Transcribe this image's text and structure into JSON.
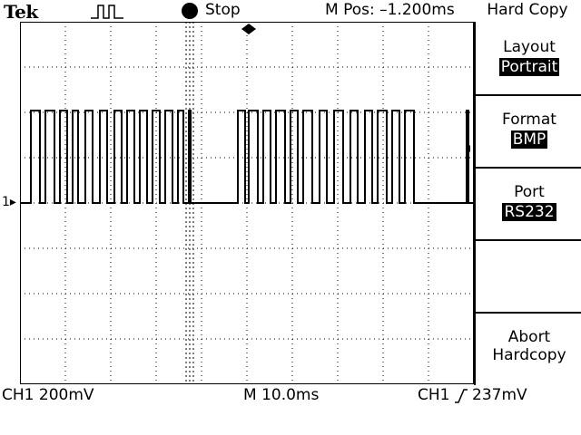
{
  "header": {
    "brand": "Tek",
    "trigger_icon": "pulse-trigger-icon",
    "run_state": "Stop",
    "horizontal_position": "M Pos: –1.200ms",
    "menu_title": "Hard Copy"
  },
  "side_menu": [
    {
      "label": "Layout",
      "value": "Portrait"
    },
    {
      "label": "Format",
      "value": "BMP"
    },
    {
      "label": "Port",
      "value": "RS232"
    },
    {
      "label": "",
      "value": ""
    },
    {
      "label": "Abort",
      "label2": "Hardcopy"
    }
  ],
  "status": {
    "ch1_scale": "CH1  200mV",
    "timebase": "M 10.0ms",
    "trigger_source": "CH1",
    "trigger_level": "237mV",
    "channel_marker": "1"
  },
  "colors": {
    "background": "#ffffff",
    "foreground": "#000000"
  }
}
